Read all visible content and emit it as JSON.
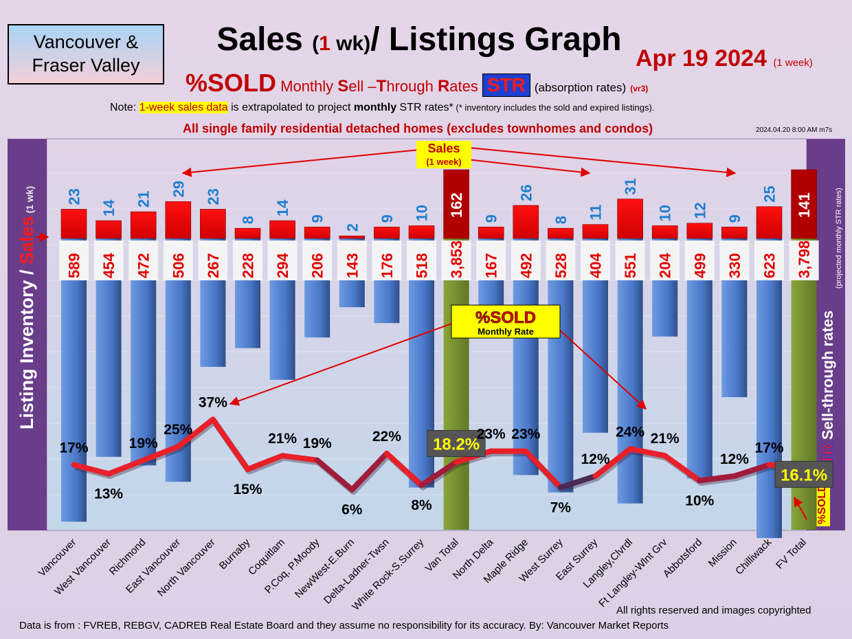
{
  "header": {
    "region_line1": "Vancouver &",
    "region_line2": "Fraser Valley",
    "title_a": "Sales ",
    "title_b": "(",
    "title_c": "1",
    "title_d": " wk)",
    "title_e": "/ Listings Graph",
    "date": "Apr 19  2024",
    "date_note": "(1 week)",
    "sub_sold": "%SOLD",
    "sub_monthly": " Monthly ",
    "sub_s": "S",
    "sub_ell": "ell –",
    "sub_t": "T",
    "sub_hrough": "hrough ",
    "sub_r": "R",
    "sub_ates": "ates",
    "sub_str": "STR",
    "sub_absorption": "(absorption rates)",
    "sub_vr": "(vr3)",
    "note_a": "Note: ",
    "note_hl": "1-week sales data",
    "note_b": " is extrapolated to project ",
    "note_bold": "monthly",
    "note_c": " STR rates*",
    "note_small": " (* inventory includes the sold and expired listings).",
    "detached": "All single family residential detached homes (excludes townhomes and condos)",
    "stamp": "2024.04.20 8:00 AM m7s"
  },
  "labels": {
    "left_axis_a": "Listing Inventory",
    "left_axis_slash": " / ",
    "left_axis_sales": "Sales",
    "left_axis_wk": "(1 wk)",
    "right_axis_a": "Sell-through rates",
    "right_axis_str": "STR",
    "right_axis_note": "(projected monthly STR rates)",
    "right_sold_box": "%SOLD",
    "sales_callout_1": "Sales",
    "sales_callout_2": "(1 week)",
    "sold_callout_1": "%SOLD",
    "sold_callout_2": "Monthly Rate"
  },
  "footer": {
    "rights": "All rights reserved and  images copyrighted",
    "source": "Data is from : FVREB, REBGV, CADREB Real Estate Board and they assume no responsibility for its accuracy. By: Vancouver Market Reports"
  },
  "chart_data": {
    "type": "bar",
    "categories": [
      "Vancouver",
      "West Vancouver",
      "Richmond",
      "East Vancouver",
      "North Vancouver",
      "Burnaby",
      "Coquitlam",
      "P.Coq, P.Moody",
      "NewWest-E.Burn",
      "Delta-Ladner-Twsn",
      "White Rock-S.Surrey",
      "Van Total",
      "North Delta",
      "Maple Ridge",
      "West Surrey",
      "East Surrey",
      "Langley,Clvrdl",
      "Ft Langley-Wlnt Grv",
      "Abbotsford",
      "Mission",
      "Chilliwack",
      "FV Total"
    ],
    "series": [
      {
        "name": "Sales",
        "values": [
          23,
          14,
          21,
          29,
          23,
          8,
          14,
          9,
          2,
          9,
          10,
          162,
          9,
          26,
          8,
          11,
          31,
          10,
          12,
          9,
          25,
          141
        ]
      },
      {
        "name": "Listing Inventory",
        "values": [
          589,
          454,
          472,
          506,
          267,
          228,
          294,
          206,
          143,
          176,
          518,
          3853,
          167,
          492,
          528,
          404,
          551,
          204,
          499,
          330,
          623,
          3798
        ]
      },
      {
        "name": "%SOLD",
        "values": [
          17,
          13,
          19,
          25,
          37,
          15,
          21,
          19,
          6,
          22,
          8,
          18.2,
          23,
          23,
          7,
          12,
          24,
          21,
          10,
          12,
          17,
          16.1
        ]
      }
    ],
    "value_labels": [
      "589",
      "454",
      "472",
      "506",
      "267",
      "228",
      "294",
      "206",
      "143",
      "176",
      "518",
      "3,853",
      "167",
      "492",
      "528",
      "404",
      "551",
      "204",
      "499",
      "330",
      "623",
      "3,798"
    ],
    "percent_labels": [
      "17%",
      "13%",
      "19%",
      "25%",
      "37%",
      "15%",
      "21%",
      "19%",
      "6%",
      "22%",
      "8%",
      "18.2%",
      "23%",
      "23%",
      "7%",
      "12%",
      "24%",
      "21%",
      "10%",
      "12%",
      "17%",
      "16.1%"
    ],
    "total_indices": [
      11,
      21
    ],
    "colors": {
      "sales": "#e00000",
      "sales_total": "#b00000",
      "inventory": "#4d7fd0",
      "inventory_total": "#7b9632",
      "line_high": "#e8202a",
      "line_low": "#4a2a55",
      "sales_label": "#1f7fd0"
    }
  }
}
